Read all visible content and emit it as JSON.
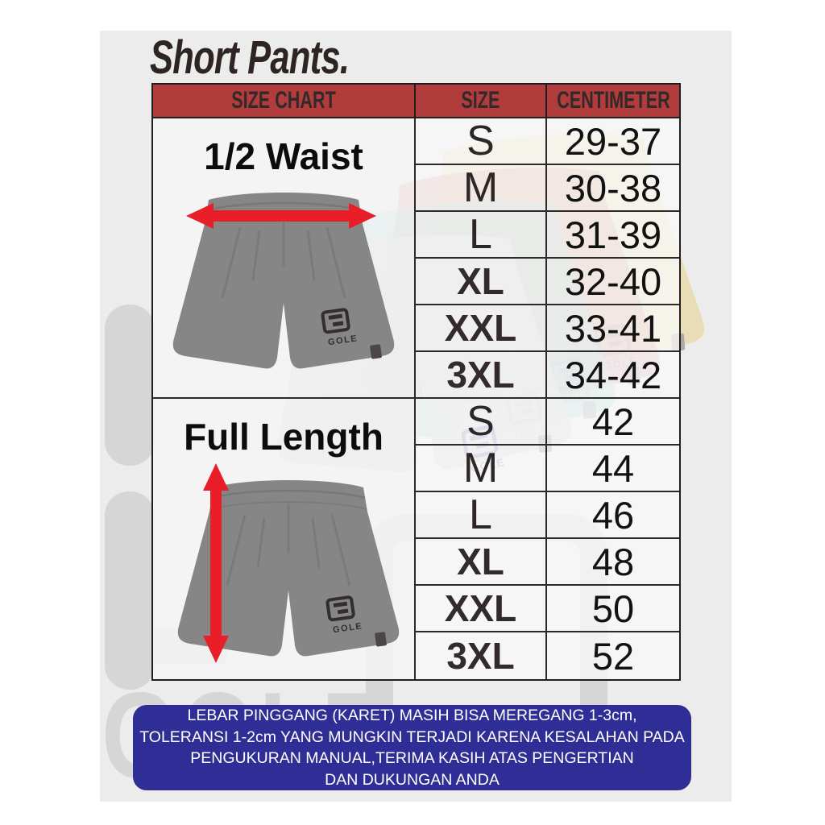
{
  "title": "Short Pants.",
  "brand": "GOLE",
  "chart_data": {
    "type": "table",
    "title": "Short Pants.",
    "header": [
      "SIZE CHART",
      "SIZE",
      "CENTIMETER"
    ],
    "sections": [
      {
        "measure": "1/2 Waist",
        "rows": [
          {
            "size": "S",
            "cm": "29-37",
            "bold": false
          },
          {
            "size": "M",
            "cm": "30-38",
            "bold": false
          },
          {
            "size": "L",
            "cm": "31-39",
            "bold": false
          },
          {
            "size": "XL",
            "cm": "32-40",
            "bold": true
          },
          {
            "size": "XXL",
            "cm": "33-41",
            "bold": true
          },
          {
            "size": "3XL",
            "cm": "34-42",
            "bold": true
          }
        ]
      },
      {
        "measure": "Full Length",
        "rows": [
          {
            "size": "S",
            "cm": "42",
            "bold": false
          },
          {
            "size": "M",
            "cm": "44",
            "bold": false
          },
          {
            "size": "L",
            "cm": "46",
            "bold": false
          },
          {
            "size": "XL",
            "cm": "48",
            "bold": true
          },
          {
            "size": "XXL",
            "cm": "50",
            "bold": true
          },
          {
            "size": "3XL",
            "cm": "52",
            "bold": true
          }
        ]
      }
    ]
  },
  "note": {
    "lines": [
      "LEBAR PINGGANG (KARET) MASIH BISA MEREGANG 1-3cm,",
      "TOLERANSI 1-2cm YANG MUNGKIN TERJADI KARENA KESALAHAN PADA",
      "PENGUKURAN MANUAL,TERIMA KASIH ATAS PENGERTIAN",
      "DAN DUKUNGAN ANDA"
    ]
  },
  "colors": {
    "header_red": "#b13c3c",
    "banner_blue": "#2f2e96",
    "arrow_red": "#e91e28",
    "shorts_gray": "#868686",
    "faded_yellow": "#e7d28c",
    "faded_red": "#cf7e80",
    "faded_teal": "#8fccc5",
    "faded_silver": "#d2d1d0",
    "watermark_gray": "#d6d6d6"
  }
}
